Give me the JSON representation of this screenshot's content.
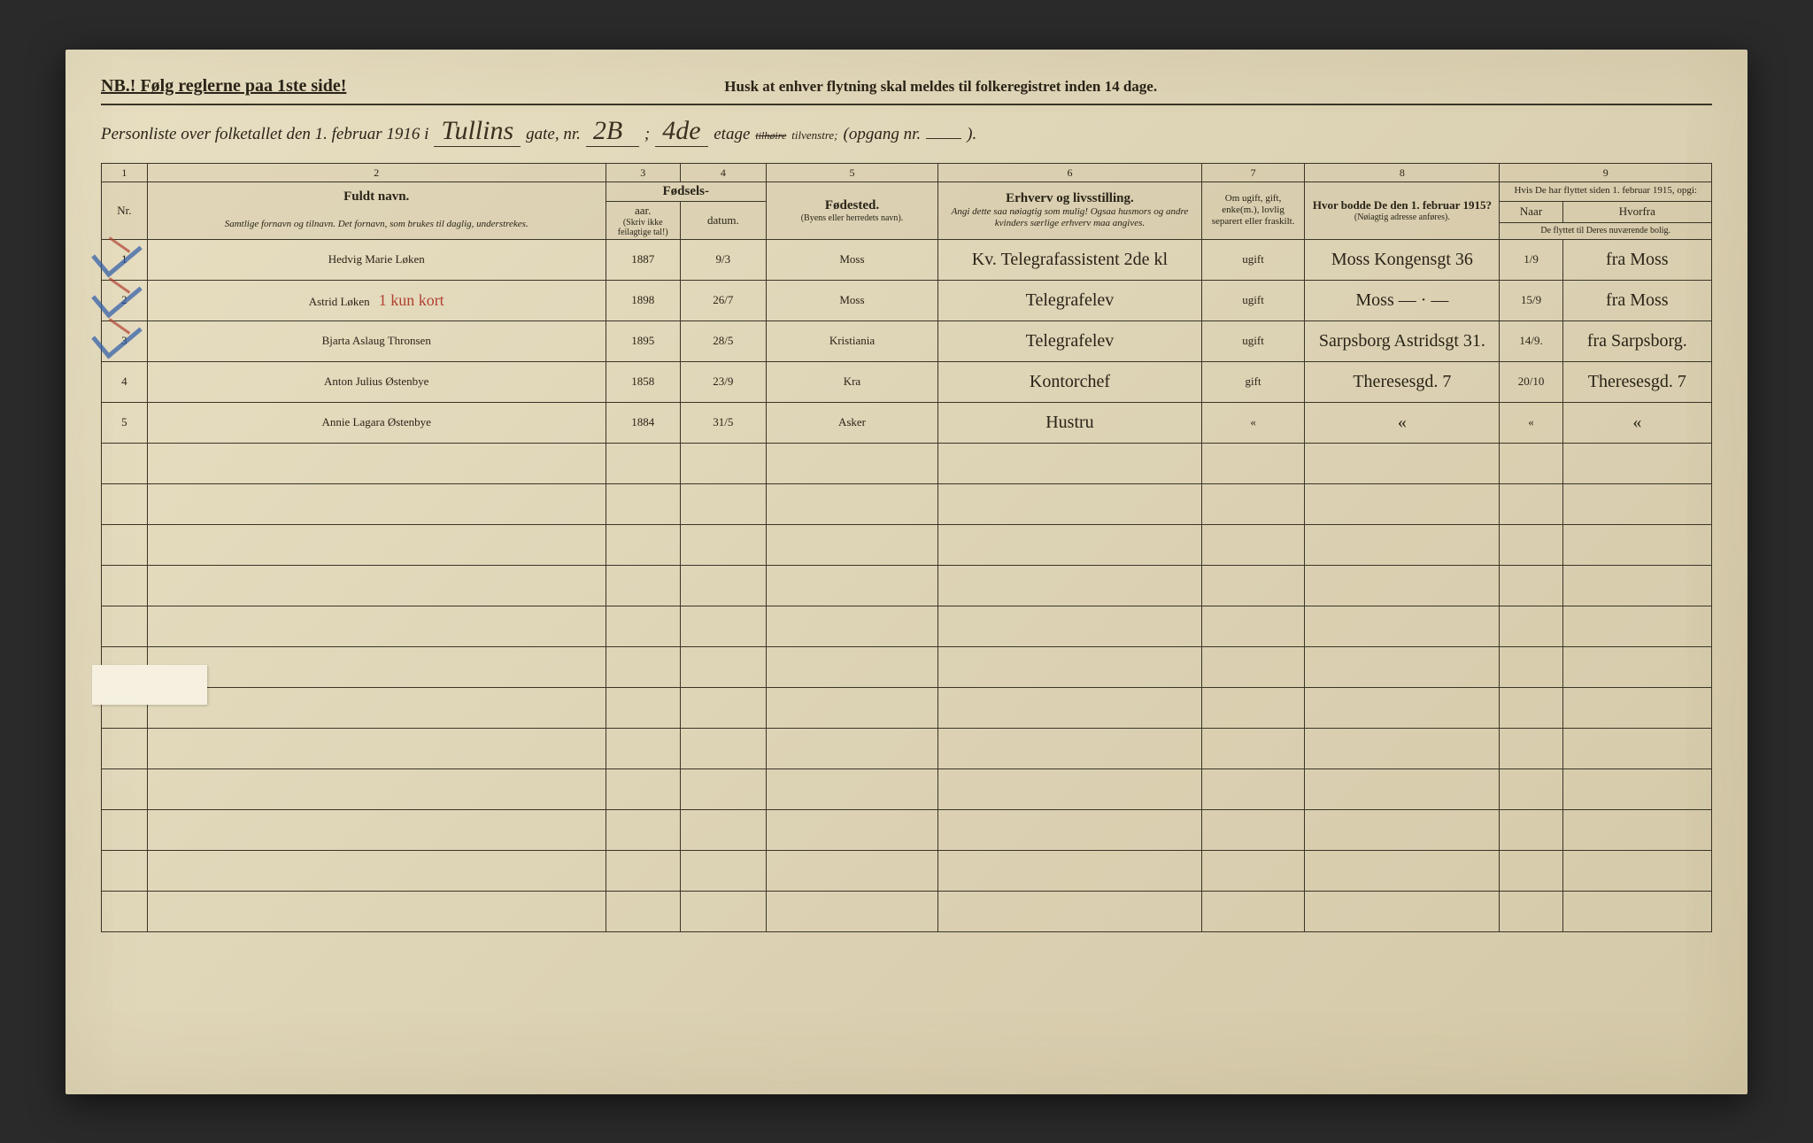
{
  "header": {
    "nb": "NB.! Følg reglerne paa 1ste side!",
    "reminder": "Husk at enhver flytning skal meldes til folkeregistret inden 14 dage.",
    "line2_prefix": "Personliste over folketallet den 1. februar 1916 i",
    "street": "Tullins",
    "gate_label": "gate, nr.",
    "house_nr": "2B",
    "semicolon": ";",
    "floor": "4de",
    "etage_label": "etage",
    "side_strike": "tilhøire",
    "side": "tilvenstre;",
    "opgang": "(opgang nr.",
    "opgang_val": "",
    "closing": ")."
  },
  "colnums": {
    "c1": "1",
    "c2": "2",
    "c3": "3",
    "c4": "4",
    "c5": "5",
    "c6": "6",
    "c7": "7",
    "c8": "8",
    "c9": "9"
  },
  "colheads": {
    "name_title": "Fuldt navn.",
    "name_sub": "Samtlige fornavn og tilnavn. Det fornavn, som brukes til daglig, understrekes.",
    "birth_title": "Fødsels-",
    "year": "aar.",
    "date": "datum.",
    "year_paren": "(Skriv ikke feilagtige tal!)",
    "place_title": "Fødested.",
    "place_sub": "(Byens eller herredets navn).",
    "occ_title": "Erhverv og livsstilling.",
    "occ_sub": "Angi dette saa nøiagtig som mulig! Ogsaa husmors og andre kvinders særlige erhverv maa angives.",
    "status_title": "Om ugift, gift, enke(m.), lovlig separert eller fraskilt.",
    "prev_title": "Hvor bodde De den 1. februar 1915?",
    "prev_sub": "(Nøiagtig adresse anføres).",
    "moved_title": "Hvis De har flyttet siden 1. februar 1915, opgi:",
    "when": "Naar",
    "wherefrom": "Hvorfra",
    "moved_sub": "De flyttet til Deres nuværende bolig.",
    "nr": "Nr."
  },
  "rows": [
    {
      "nr": "1",
      "name": "Hedvig Marie Løken",
      "year": "1887",
      "date": "9/3",
      "birthplace": "Moss",
      "occupation": "Kv. Telegrafassistent 2de kl",
      "status": "ugift",
      "prev_addr": "Moss Kongensgt 36",
      "when": "1/9",
      "wherefrom": "fra Moss",
      "has_marks": true
    },
    {
      "nr": "2",
      "name": "Astrid Løken",
      "name_note": "1 kun kort",
      "year": "1898",
      "date": "26/7",
      "birthplace": "Moss",
      "occupation": "Telegrafelev",
      "status": "ugift",
      "prev_addr": "Moss — · —",
      "when": "15/9",
      "wherefrom": "fra Moss",
      "has_marks": true
    },
    {
      "nr": "3",
      "name": "Bjarta Aslaug Thronsen",
      "year": "1895",
      "date": "28/5",
      "birthplace": "Kristiania",
      "occupation": "Telegrafelev",
      "status": "ugift",
      "prev_addr": "Sarpsborg Astridsgt 31.",
      "when": "14/9.",
      "wherefrom": "fra Sarpsborg.",
      "has_marks": true
    },
    {
      "nr": "4",
      "name": "Anton Julius Østenbye",
      "year": "1858",
      "date": "23/9",
      "birthplace": "Kra",
      "occupation": "Kontorchef",
      "status": "gift",
      "prev_addr": "Theresesgd. 7",
      "when": "20/10",
      "wherefrom": "Theresesgd. 7",
      "has_marks": false
    },
    {
      "nr": "5",
      "name": "Annie Lagara Østenbye",
      "year": "1884",
      "date": "31/5",
      "birthplace": "Asker",
      "occupation": "Hustru",
      "status": "«",
      "prev_addr": "«",
      "when": "«",
      "wherefrom": "«",
      "has_marks": false
    }
  ],
  "style": {
    "paper_bg": "#e0d6b8",
    "ink": "#2a2418",
    "hand_ink": "#2b2010",
    "blue_pencil": "#2a5aa8",
    "red_pencil": "#b04030",
    "border": "#3a3528",
    "font_title_pt": 15,
    "font_sub_pt": 11,
    "font_hand_pt": 24,
    "empty_rows": 12
  }
}
